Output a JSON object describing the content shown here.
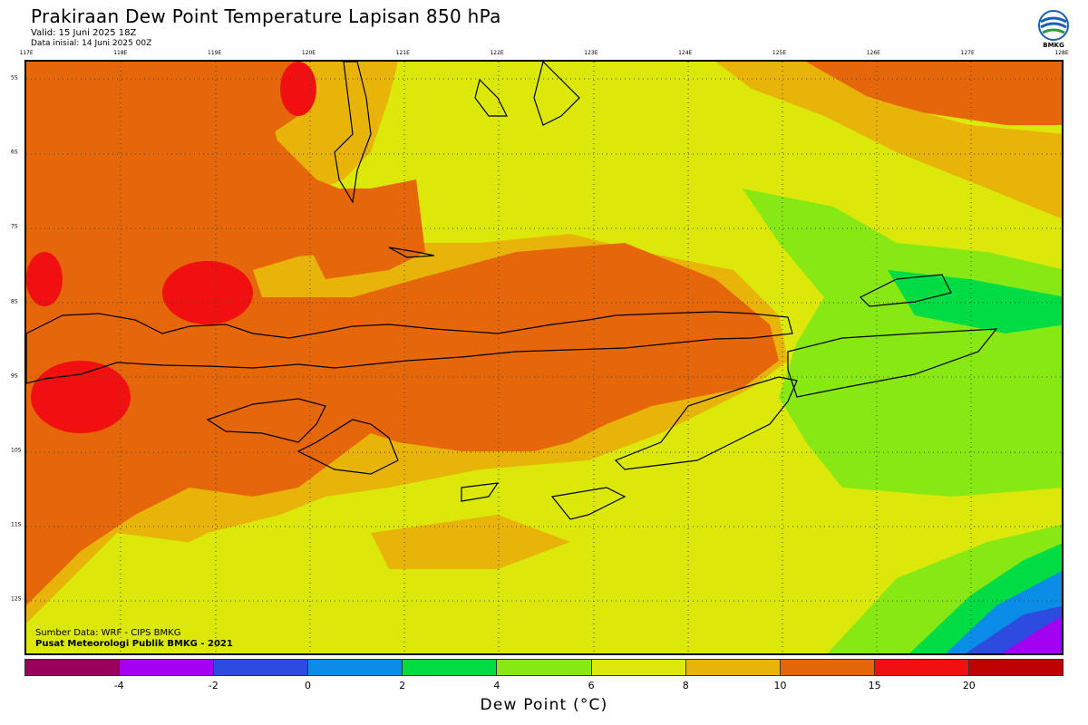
{
  "header": {
    "title": "Prakiraan Dew Point Temperature Lapisan 850 hPa",
    "valid": "Valid: 15 Juni 2025 18Z",
    "init": "Data inisial: 14 Juni 2025 00Z"
  },
  "logo": {
    "text": "BMKG",
    "icon": "bmkg-logo"
  },
  "axes": {
    "lon_ticks": [
      "117E",
      "118E",
      "119E",
      "120E",
      "121E",
      "122E",
      "123E",
      "124E",
      "125E",
      "126E",
      "127E",
      "128E"
    ],
    "lat_ticks": [
      "5S",
      "6S",
      "7S",
      "8S",
      "9S",
      "10S",
      "11S",
      "12S"
    ]
  },
  "credits": {
    "line1": "Sumber Data: WRF - CIPS BMKG",
    "line2": "Pusat Meteorologi Publik BMKG - 2021"
  },
  "colorbar": {
    "colors": [
      "#99005c",
      "#a200ee",
      "#2e4be0",
      "#0a8de6",
      "#00dd44",
      "#88e814",
      "#dbe80a",
      "#e9b40a",
      "#e6660a",
      "#f01010",
      "#be0000"
    ],
    "labels": [
      "-4",
      "-2",
      "0",
      "2",
      "4",
      "6",
      "8",
      "10",
      "15",
      "20"
    ],
    "xlabel": "Dew Point (°C)"
  }
}
